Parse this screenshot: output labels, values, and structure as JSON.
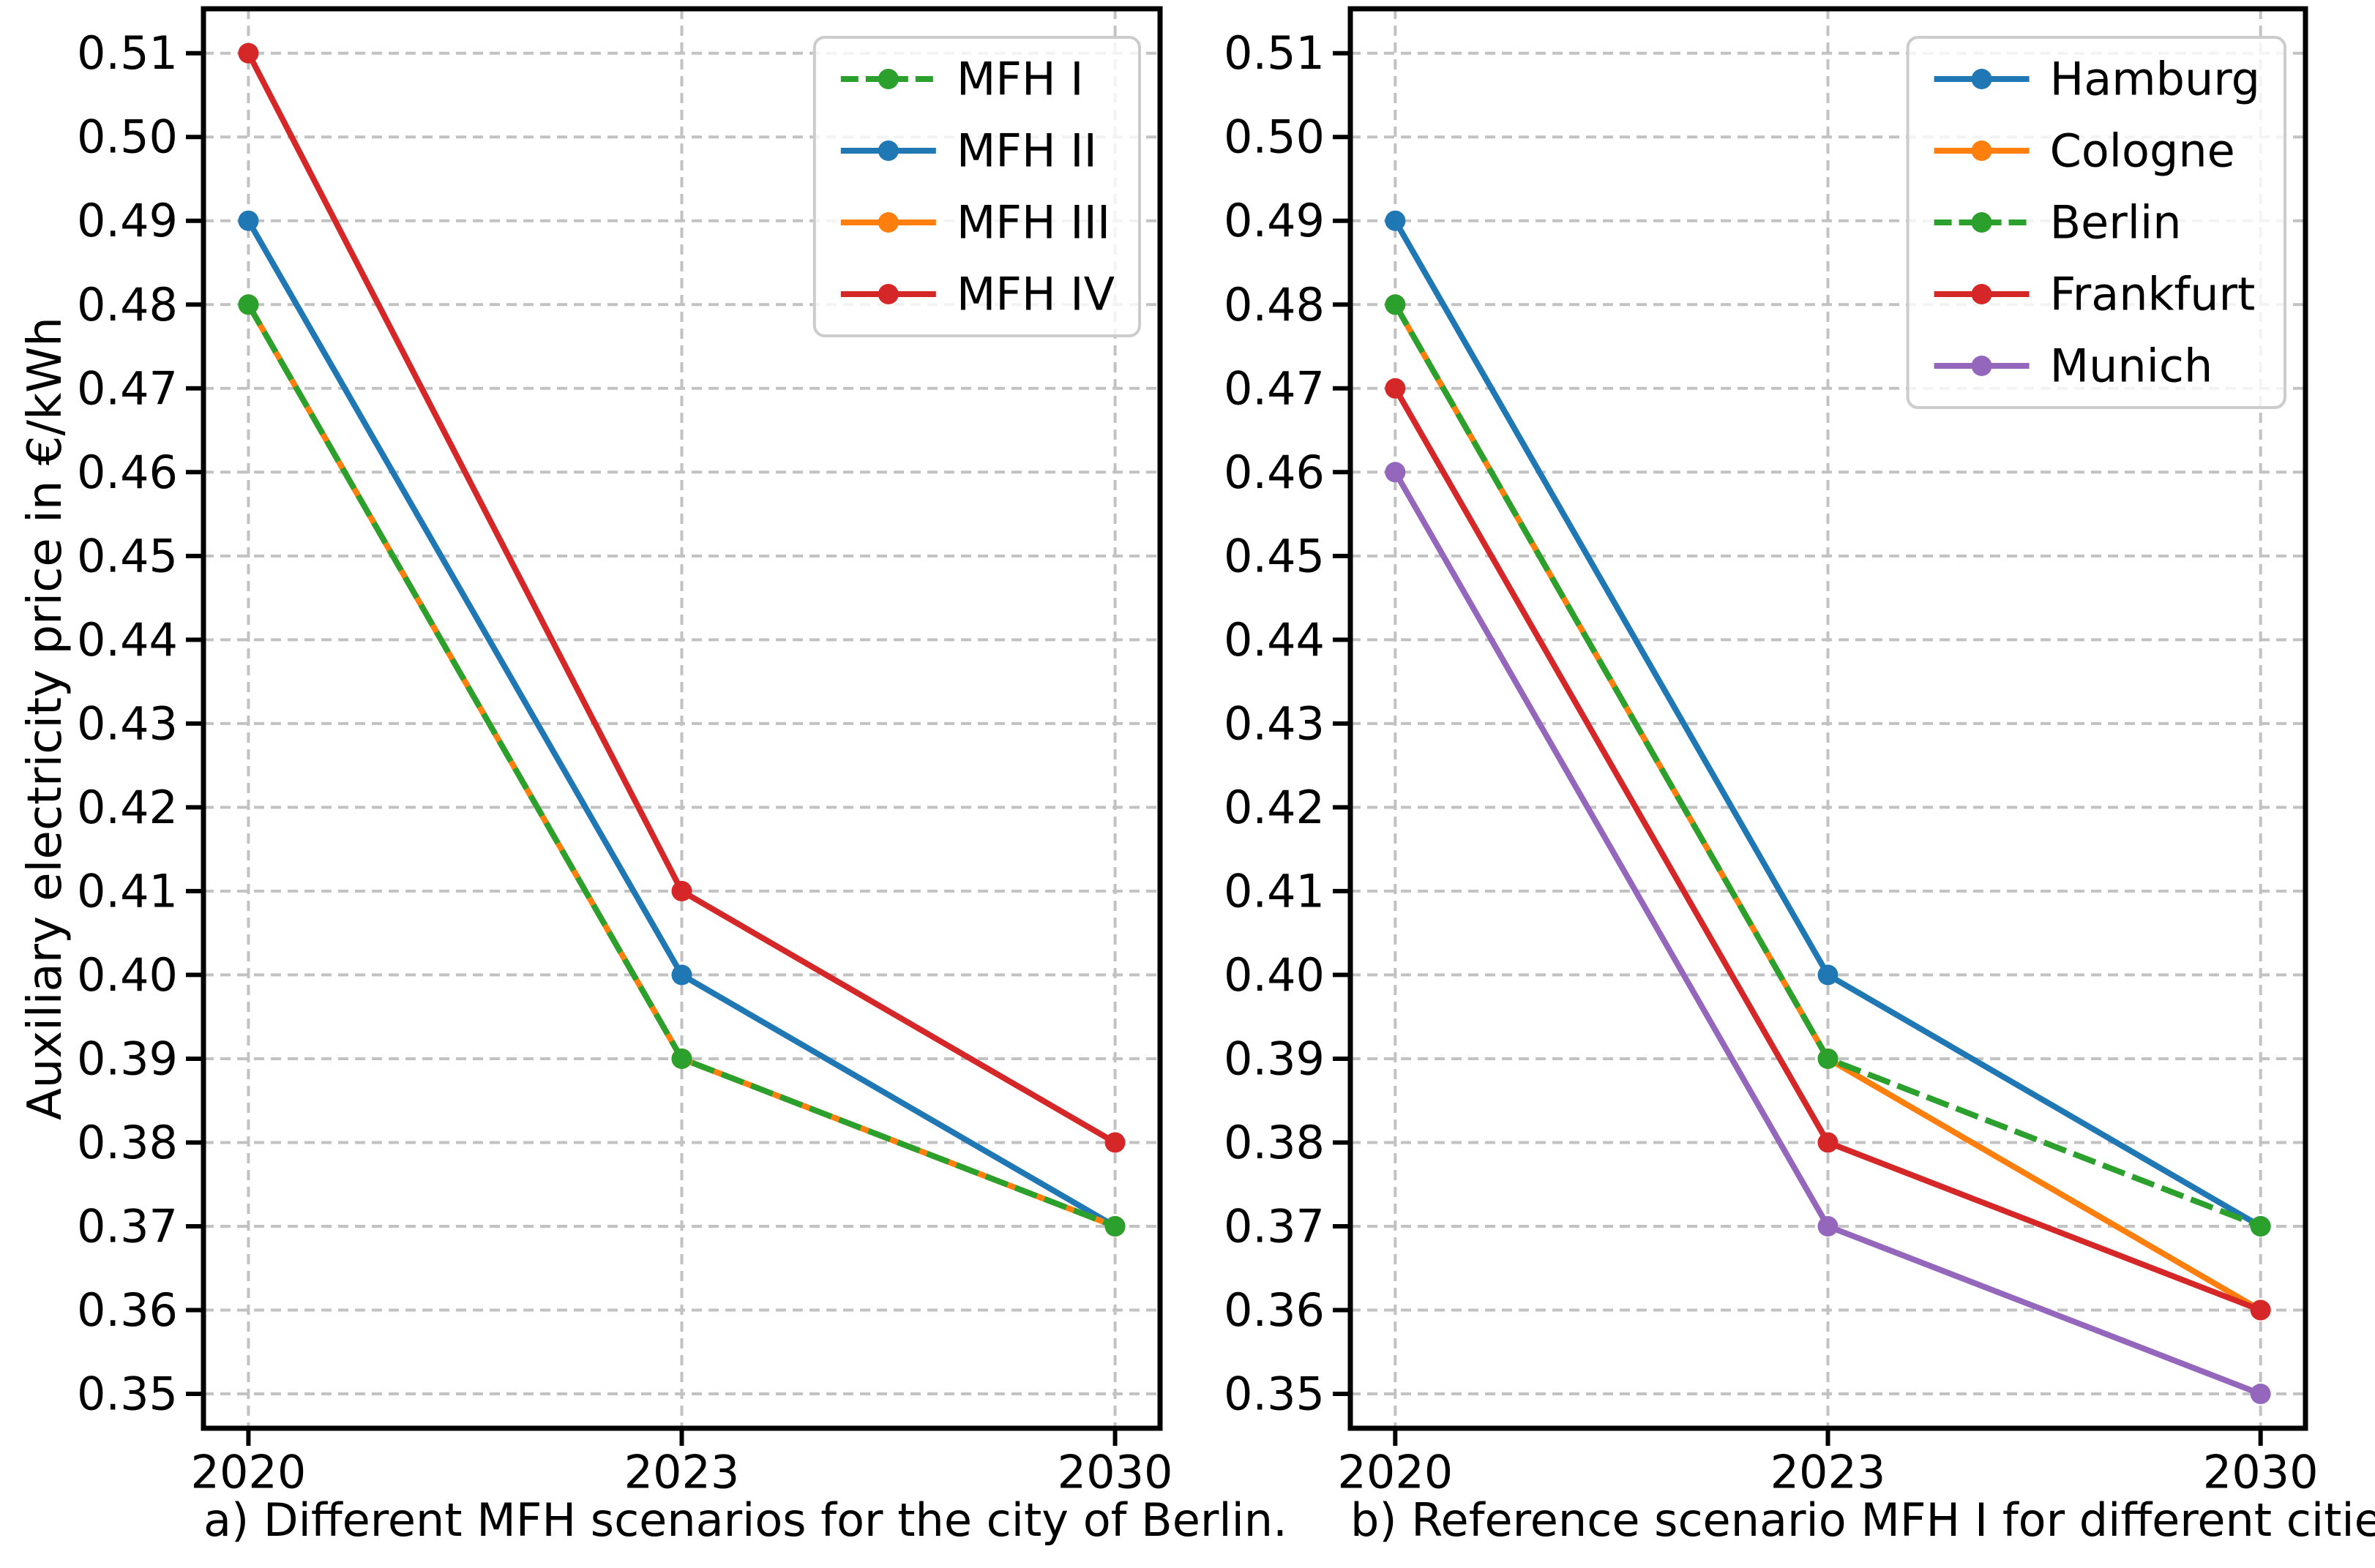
{
  "figure": {
    "ylabel": "Auxiliary electricity price in €/kWh",
    "background_color": "#ffffff",
    "grid_color": "#c2c2c2",
    "spine_color": "#000000",
    "legend_border_color": "#cccccc"
  },
  "chart_data": [
    {
      "type": "line",
      "caption": "a) Different MFH scenarios for the city of Berlin.",
      "categories": [
        "2020",
        "2023",
        "2030"
      ],
      "ylabel": "Auxiliary electricity price in €/kWh",
      "ylim": [
        0.3459,
        0.5153
      ],
      "yticks": [
        "0.35",
        "0.36",
        "0.37",
        "0.38",
        "0.39",
        "0.40",
        "0.41",
        "0.42",
        "0.43",
        "0.44",
        "0.45",
        "0.46",
        "0.47",
        "0.48",
        "0.49",
        "0.50",
        "0.51"
      ],
      "grid": true,
      "marker": "circle",
      "legend_position": "upper right",
      "series": [
        {
          "name": "MFH I",
          "values": [
            0.48,
            0.39,
            0.37
          ],
          "color": "#2ca02c",
          "style": "dashed"
        },
        {
          "name": "MFH II",
          "values": [
            0.49,
            0.4,
            0.37
          ],
          "color": "#1f77b4",
          "style": "solid"
        },
        {
          "name": "MFH III",
          "values": [
            0.48,
            0.39,
            0.37
          ],
          "color": "#ff7f0e",
          "style": "solid"
        },
        {
          "name": "MFH IV",
          "values": [
            0.51,
            0.41,
            0.38
          ],
          "color": "#d62728",
          "style": "solid"
        }
      ]
    },
    {
      "type": "line",
      "caption": "b) Reference scenario MFH I for different cities.",
      "categories": [
        "2020",
        "2023",
        "2030"
      ],
      "ylabel": "",
      "ylim": [
        0.3459,
        0.5153
      ],
      "yticks": [
        "0.35",
        "0.36",
        "0.37",
        "0.38",
        "0.39",
        "0.40",
        "0.41",
        "0.42",
        "0.43",
        "0.44",
        "0.45",
        "0.46",
        "0.47",
        "0.48",
        "0.49",
        "0.50",
        "0.51"
      ],
      "grid": true,
      "marker": "circle",
      "legend_position": "upper right",
      "series": [
        {
          "name": "Hamburg",
          "values": [
            0.49,
            0.4,
            0.37
          ],
          "color": "#1f77b4",
          "style": "solid"
        },
        {
          "name": "Cologne",
          "values": [
            0.48,
            0.39,
            0.36
          ],
          "color": "#ff7f0e",
          "style": "solid"
        },
        {
          "name": "Berlin",
          "values": [
            0.48,
            0.39,
            0.37
          ],
          "color": "#2ca02c",
          "style": "dashed"
        },
        {
          "name": "Frankfurt",
          "values": [
            0.47,
            0.38,
            0.36
          ],
          "color": "#d62728",
          "style": "solid"
        },
        {
          "name": "Munich",
          "values": [
            0.46,
            0.37,
            0.35
          ],
          "color": "#9467bd",
          "style": "solid"
        }
      ]
    }
  ]
}
